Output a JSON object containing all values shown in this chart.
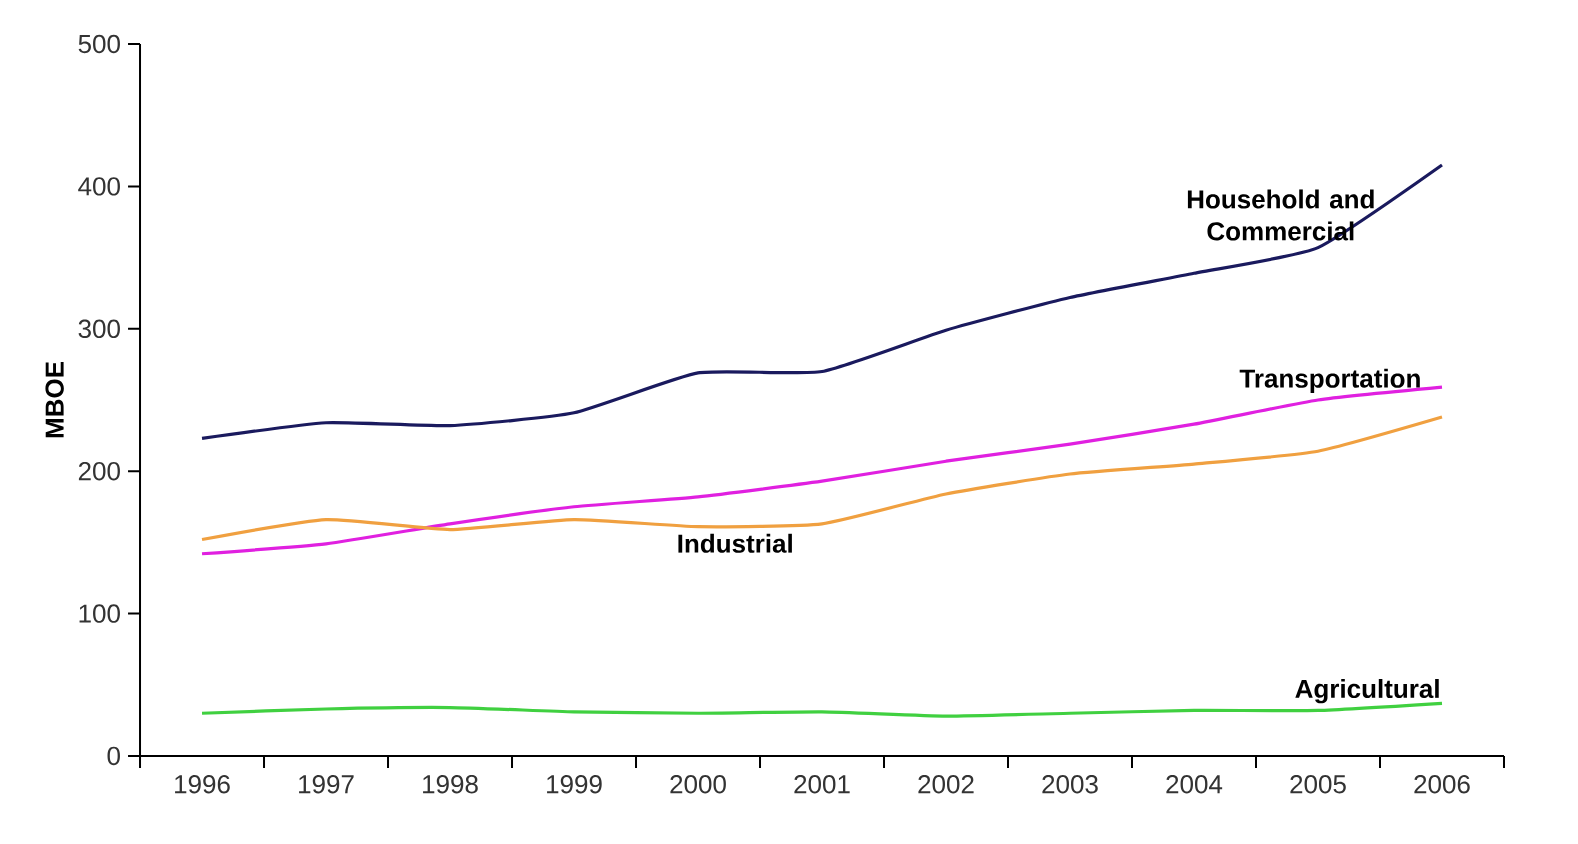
{
  "chart_data": {
    "type": "line",
    "ylabel": "MBOE",
    "categories": [
      "1996",
      "1997",
      "1998",
      "1999",
      "2000",
      "2001",
      "2002",
      "2003",
      "2004",
      "2005",
      "2006"
    ],
    "series": [
      {
        "name": "Household and Commercial",
        "color": "#1a1a5e",
        "values": [
          223,
          234,
          232,
          241,
          269,
          270,
          299,
          322,
          339,
          357,
          415
        ]
      },
      {
        "name": "Transportation",
        "color": "#e020e0",
        "values": [
          142,
          149,
          163,
          175,
          182,
          193,
          207,
          219,
          233,
          250,
          259
        ]
      },
      {
        "name": "Industrial",
        "color": "#f0a040",
        "values": [
          152,
          166,
          159,
          166,
          161,
          163,
          184,
          198,
          205,
          214,
          238
        ]
      },
      {
        "name": "Agricultural",
        "color": "#40d040",
        "values": [
          30,
          33,
          34,
          31,
          30,
          31,
          28,
          30,
          32,
          32,
          37
        ]
      }
    ],
    "ylim": [
      0,
      500
    ],
    "yticks": [
      0,
      100,
      200,
      300,
      400,
      500
    ],
    "grid": false,
    "legend": false,
    "marker": "none",
    "line_style": "solid"
  }
}
